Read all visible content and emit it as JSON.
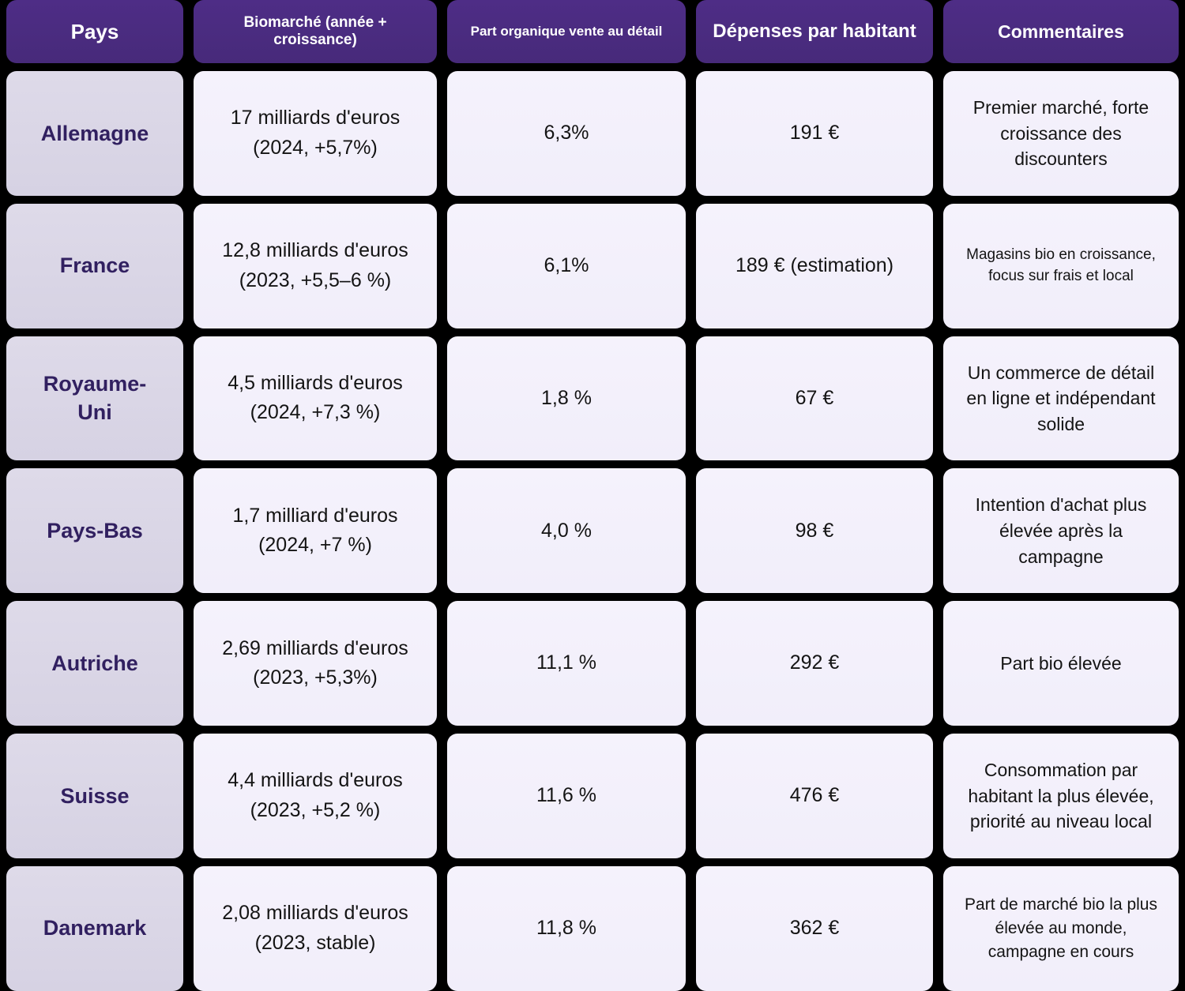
{
  "colors": {
    "page_background": "#000000",
    "header_background": "#4a2b7f",
    "country_cell_background": "#dad6e6",
    "data_cell_background": "#f3f0fa",
    "header_text": "#ffffff",
    "country_text": "#312060",
    "data_text": "#141414"
  },
  "table": {
    "headers": [
      {
        "label": "Pays"
      },
      {
        "label": "Biomarché (année + croissance)"
      },
      {
        "label": "Part organique vente au détail"
      },
      {
        "label": "Dépenses par habitant"
      },
      {
        "label": "Commentaires"
      }
    ],
    "rows": [
      {
        "country": "Allemagne",
        "market_line1": "17 milliards d'euros",
        "market_line2": "(2024, +5,7%)",
        "organic_share": "6,3%",
        "spend_per_capita": "191 €",
        "comment": "Premier marché, forte croissance des discounters"
      },
      {
        "country": "France",
        "market_line1": "12,8 milliards d'euros",
        "market_line2": "(2023, +5,5–6 %)",
        "organic_share": "6,1%",
        "spend_per_capita": "189 € (estimation)",
        "comment": "Magasins bio en croissance, focus sur frais et local"
      },
      {
        "country": "Royaume-Uni",
        "market_line1": "4,5 milliards d'euros",
        "market_line2": "(2024, +7,3 %)",
        "organic_share": "1,8 %",
        "spend_per_capita": "67 €",
        "comment": "Un commerce de détail en ligne et indépendant solide"
      },
      {
        "country": "Pays-Bas",
        "market_line1": "1,7 milliard d'euros",
        "market_line2": "(2024, +7 %)",
        "organic_share": "4,0 %",
        "spend_per_capita": "98 €",
        "comment": "Intention d'achat plus élevée après la campagne"
      },
      {
        "country": "Autriche",
        "market_line1": "2,69 milliards d'euros",
        "market_line2": "(2023, +5,3%)",
        "organic_share": "11,1 %",
        "spend_per_capita": "292 €",
        "comment": "Part bio élevée"
      },
      {
        "country": "Suisse",
        "market_line1": "4,4 milliards d'euros",
        "market_line2": "(2023, +5,2 %)",
        "organic_share": "11,6 %",
        "spend_per_capita": "476 €",
        "comment": "Consommation par habitant la plus élevée, priorité au niveau local"
      },
      {
        "country": "Danemark",
        "market_line1": "2,08 milliards d'euros",
        "market_line2": "(2023, stable)",
        "organic_share": "11,8 %",
        "spend_per_capita": "362 €",
        "comment": "Part de marché bio la plus élevée au monde, campagne en cours"
      }
    ]
  },
  "chart_data": {
    "type": "table",
    "title": "",
    "columns": [
      "Pays",
      "Biomarché (année + croissance)",
      "Part organique vente au détail",
      "Dépenses par habitant",
      "Commentaires"
    ],
    "rows": [
      [
        "Allemagne",
        "17 milliards d'euros (2024, +5,7%)",
        "6,3%",
        "191 €",
        "Premier marché, forte croissance des discounters"
      ],
      [
        "France",
        "12,8 milliards d'euros (2023, +5,5–6 %)",
        "6,1%",
        "189 € (estimation)",
        "Magasins bio en croissance, focus sur frais et local"
      ],
      [
        "Royaume-Uni",
        "4,5 milliards d'euros (2024, +7,3 %)",
        "1,8 %",
        "67 €",
        "Un commerce de détail en ligne et indépendant solide"
      ],
      [
        "Pays-Bas",
        "1,7 milliard d'euros (2024, +7 %)",
        "4,0 %",
        "98 €",
        "Intention d'achat plus élevée après la campagne"
      ],
      [
        "Autriche",
        "2,69 milliards d'euros (2023, +5,3%)",
        "11,1 %",
        "292 €",
        "Part bio élevée"
      ],
      [
        "Suisse",
        "4,4 milliards d'euros (2023, +5,2 %)",
        "11,6 %",
        "476 €",
        "Consommation par habitant la plus élevée, priorité au niveau local"
      ],
      [
        "Danemark",
        "2,08 milliards d'euros (2023, stable)",
        "11,8 %",
        "362 €",
        "Part de marché bio la plus élevée au monde, campagne en cours"
      ]
    ],
    "numeric_summary": {
      "market_size_billions_eur": [
        17,
        12.8,
        4.5,
        1.7,
        2.69,
        4.4,
        2.08
      ],
      "organic_retail_share_pct": [
        6.3,
        6.1,
        1.8,
        4.0,
        11.1,
        11.6,
        11.8
      ],
      "spend_per_capita_eur": [
        191,
        189,
        67,
        98,
        292,
        476,
        362
      ]
    }
  }
}
